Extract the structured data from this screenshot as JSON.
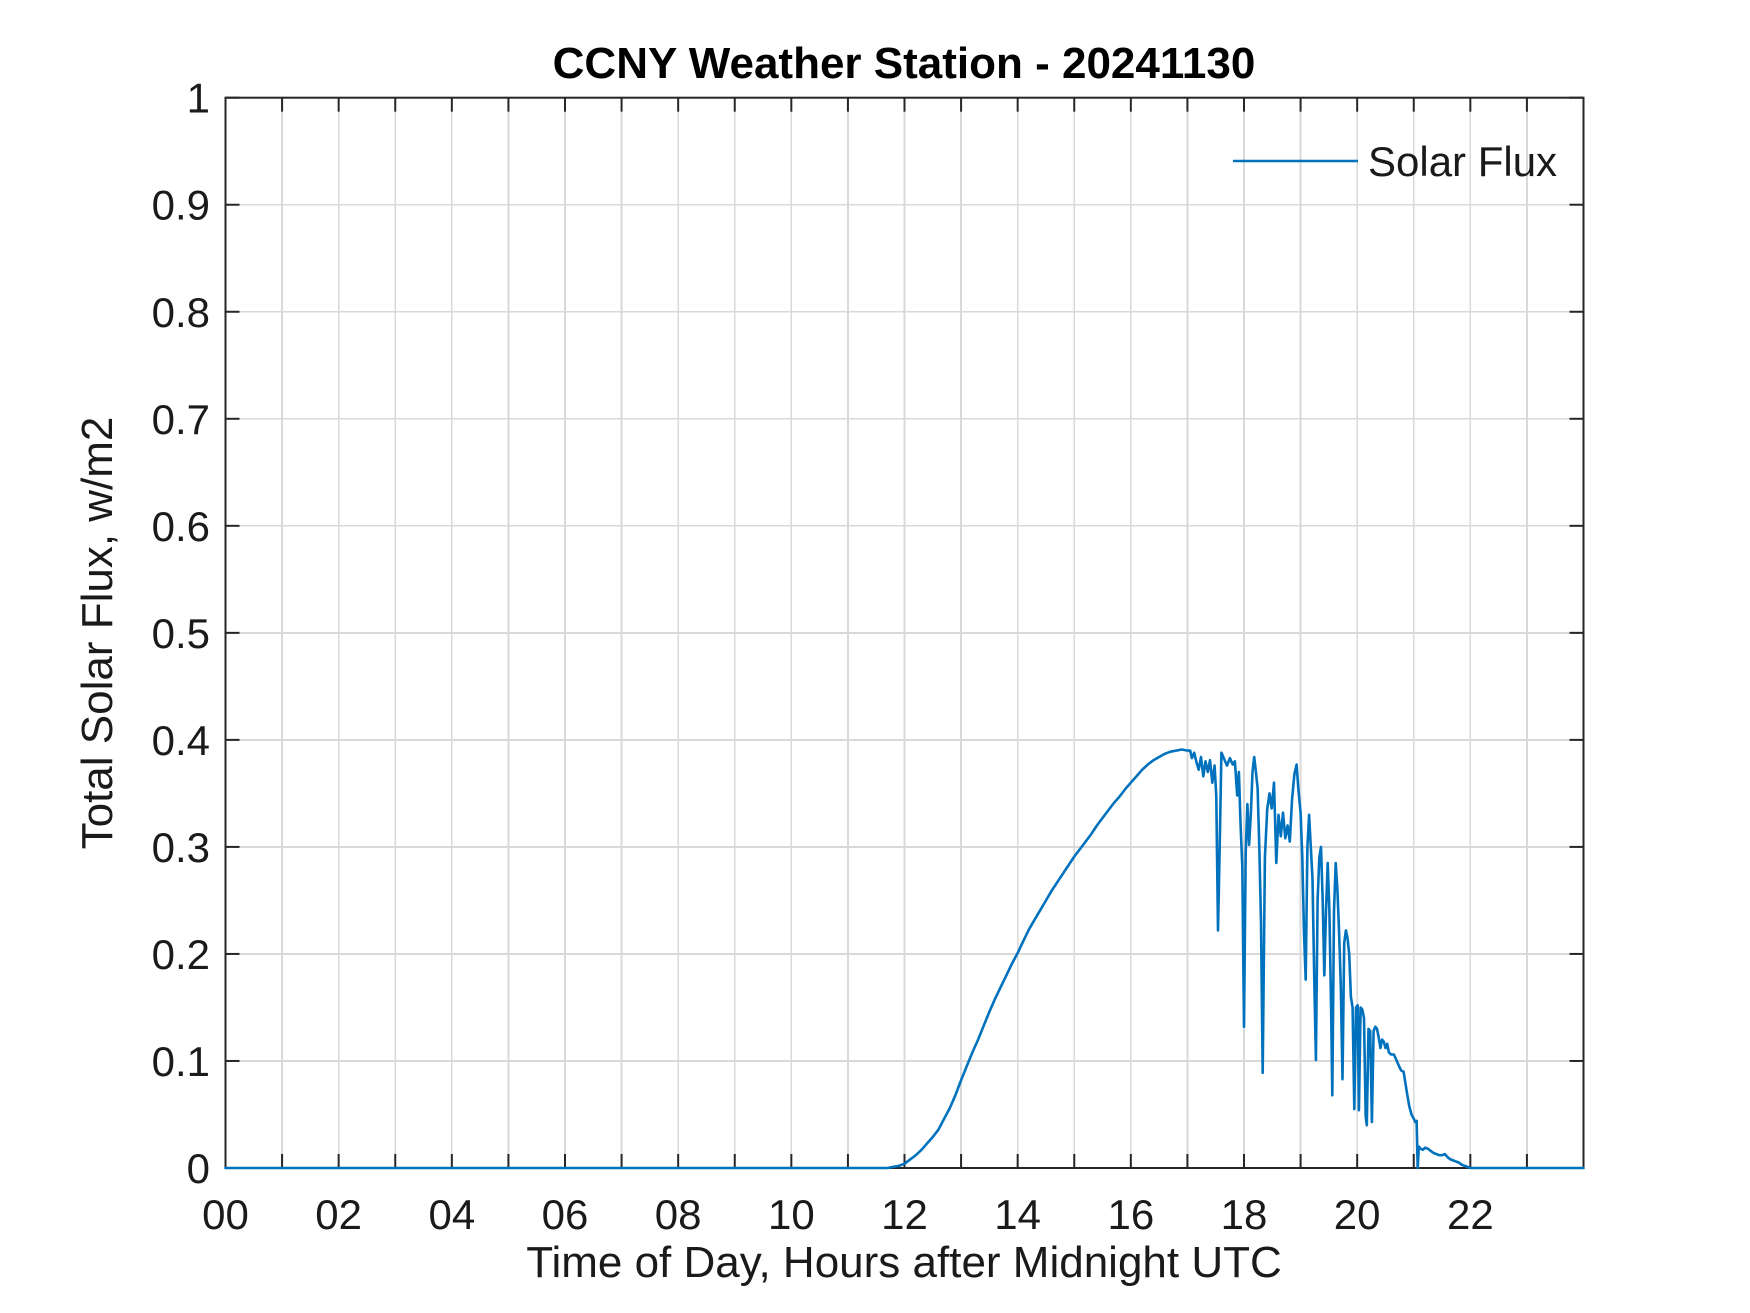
{
  "figure": {
    "background": "#FFFFFF"
  },
  "chart_data": {
    "type": "line",
    "title": "CCNY Weather Station - 20241130",
    "xlabel": "Time of Day, Hours after Midnight UTC",
    "ylabel": "Total Solar Flux, w/m2",
    "xlim": [
      0,
      24
    ],
    "ylim": [
      0,
      1
    ],
    "grid": true,
    "x_ticks": [
      0,
      1,
      2,
      3,
      4,
      5,
      6,
      7,
      8,
      9,
      10,
      11,
      12,
      13,
      14,
      15,
      16,
      17,
      18,
      19,
      20,
      21,
      22,
      23,
      24
    ],
    "x_tick_labels": [
      {
        "value": 0,
        "label": "00"
      },
      {
        "value": 2,
        "label": "02"
      },
      {
        "value": 4,
        "label": "04"
      },
      {
        "value": 6,
        "label": "06"
      },
      {
        "value": 8,
        "label": "08"
      },
      {
        "value": 10,
        "label": "10"
      },
      {
        "value": 12,
        "label": "12"
      },
      {
        "value": 14,
        "label": "14"
      },
      {
        "value": 16,
        "label": "16"
      },
      {
        "value": 18,
        "label": "18"
      },
      {
        "value": 20,
        "label": "20"
      },
      {
        "value": 22,
        "label": "22"
      }
    ],
    "y_ticks": [
      0,
      0.1,
      0.2,
      0.3,
      0.4,
      0.5,
      0.6,
      0.7,
      0.8,
      0.9,
      1
    ],
    "y_tick_labels": [
      "0",
      "0.1",
      "0.2",
      "0.3",
      "0.4",
      "0.5",
      "0.6",
      "0.7",
      "0.8",
      "0.9",
      "1"
    ],
    "colors": {
      "line": "#0072BD",
      "grid": "#D9D9D9",
      "axis": "#262626",
      "tick_text": "#1A1A1A",
      "title_text": "#000000"
    },
    "legend": [
      {
        "label": "Solar Flux",
        "color": "#0072BD",
        "position": "northeast",
        "box": false
      }
    ],
    "series": [
      {
        "name": "Solar Flux",
        "points": [
          [
            0,
            0
          ],
          [
            1,
            0
          ],
          [
            2,
            0
          ],
          [
            3,
            0
          ],
          [
            4,
            0
          ],
          [
            5,
            0
          ],
          [
            6,
            0
          ],
          [
            7,
            0
          ],
          [
            8,
            0
          ],
          [
            9,
            0
          ],
          [
            10,
            0
          ],
          [
            10.5,
            0
          ],
          [
            11,
            0
          ],
          [
            11.4,
            0
          ],
          [
            11.7,
            0
          ],
          [
            11.8,
            0.001
          ],
          [
            11.9,
            0.002
          ],
          [
            12,
            0.004
          ],
          [
            12.1,
            0.008
          ],
          [
            12.2,
            0.012
          ],
          [
            12.3,
            0.017
          ],
          [
            12.4,
            0.023
          ],
          [
            12.5,
            0.029
          ],
          [
            12.6,
            0.036
          ],
          [
            12.7,
            0.046
          ],
          [
            12.8,
            0.056
          ],
          [
            12.9,
            0.068
          ],
          [
            13,
            0.082
          ],
          [
            13.1,
            0.095
          ],
          [
            13.2,
            0.108
          ],
          [
            13.3,
            0.12
          ],
          [
            13.4,
            0.133
          ],
          [
            13.5,
            0.146
          ],
          [
            13.6,
            0.158
          ],
          [
            13.7,
            0.169
          ],
          [
            13.8,
            0.18
          ],
          [
            13.9,
            0.191
          ],
          [
            14,
            0.201
          ],
          [
            14.1,
            0.212
          ],
          [
            14.2,
            0.223
          ],
          [
            14.3,
            0.232
          ],
          [
            14.4,
            0.241
          ],
          [
            14.5,
            0.25
          ],
          [
            14.6,
            0.259
          ],
          [
            14.7,
            0.267
          ],
          [
            14.8,
            0.275
          ],
          [
            14.9,
            0.283
          ],
          [
            15,
            0.291
          ],
          [
            15.1,
            0.298
          ],
          [
            15.2,
            0.305
          ],
          [
            15.3,
            0.312
          ],
          [
            15.4,
            0.32
          ],
          [
            15.5,
            0.327
          ],
          [
            15.6,
            0.334
          ],
          [
            15.7,
            0.341
          ],
          [
            15.8,
            0.347
          ],
          [
            15.9,
            0.354
          ],
          [
            16,
            0.36
          ],
          [
            16.1,
            0.366
          ],
          [
            16.2,
            0.372
          ],
          [
            16.3,
            0.377
          ],
          [
            16.4,
            0.381
          ],
          [
            16.5,
            0.384
          ],
          [
            16.6,
            0.387
          ],
          [
            16.7,
            0.389
          ],
          [
            16.8,
            0.39
          ],
          [
            16.9,
            0.391
          ],
          [
            17,
            0.39
          ],
          [
            17.05,
            0.39
          ],
          [
            17.08,
            0.383
          ],
          [
            17.12,
            0.388
          ],
          [
            17.16,
            0.379
          ],
          [
            17.2,
            0.372
          ],
          [
            17.24,
            0.384
          ],
          [
            17.28,
            0.366
          ],
          [
            17.32,
            0.38
          ],
          [
            17.36,
            0.37
          ],
          [
            17.4,
            0.381
          ],
          [
            17.44,
            0.36
          ],
          [
            17.48,
            0.376
          ],
          [
            17.51,
            0.347
          ],
          [
            17.54,
            0.222
          ],
          [
            17.57,
            0.3
          ],
          [
            17.6,
            0.388
          ],
          [
            17.65,
            0.382
          ],
          [
            17.7,
            0.376
          ],
          [
            17.75,
            0.383
          ],
          [
            17.8,
            0.377
          ],
          [
            17.84,
            0.38
          ],
          [
            17.88,
            0.348
          ],
          [
            17.91,
            0.37
          ],
          [
            17.94,
            0.32
          ],
          [
            17.97,
            0.282
          ],
          [
            18,
            0.132
          ],
          [
            18.03,
            0.295
          ],
          [
            18.06,
            0.34
          ],
          [
            18.09,
            0.302
          ],
          [
            18.12,
            0.33
          ],
          [
            18.15,
            0.37
          ],
          [
            18.18,
            0.384
          ],
          [
            18.21,
            0.37
          ],
          [
            18.24,
            0.355
          ],
          [
            18.27,
            0.3
          ],
          [
            18.3,
            0.23
          ],
          [
            18.33,
            0.089
          ],
          [
            18.37,
            0.29
          ],
          [
            18.41,
            0.335
          ],
          [
            18.45,
            0.35
          ],
          [
            18.49,
            0.336
          ],
          [
            18.53,
            0.36
          ],
          [
            18.57,
            0.285
          ],
          [
            18.61,
            0.33
          ],
          [
            18.65,
            0.31
          ],
          [
            18.69,
            0.332
          ],
          [
            18.73,
            0.308
          ],
          [
            18.77,
            0.32
          ],
          [
            18.81,
            0.305
          ],
          [
            18.85,
            0.345
          ],
          [
            18.89,
            0.368
          ],
          [
            18.93,
            0.377
          ],
          [
            18.96,
            0.355
          ],
          [
            19,
            0.332
          ],
          [
            19.03,
            0.29
          ],
          [
            19.06,
            0.22
          ],
          [
            19.09,
            0.176
          ],
          [
            19.12,
            0.3
          ],
          [
            19.15,
            0.33
          ],
          [
            19.18,
            0.3
          ],
          [
            19.21,
            0.27
          ],
          [
            19.24,
            0.18
          ],
          [
            19.27,
            0.101
          ],
          [
            19.3,
            0.25
          ],
          [
            19.33,
            0.29
          ],
          [
            19.36,
            0.3
          ],
          [
            19.39,
            0.25
          ],
          [
            19.42,
            0.18
          ],
          [
            19.45,
            0.24
          ],
          [
            19.48,
            0.285
          ],
          [
            19.51,
            0.24
          ],
          [
            19.54,
            0.15
          ],
          [
            19.56,
            0.068
          ],
          [
            19.59,
            0.24
          ],
          [
            19.62,
            0.285
          ],
          [
            19.65,
            0.26
          ],
          [
            19.68,
            0.22
          ],
          [
            19.71,
            0.17
          ],
          [
            19.74,
            0.083
          ],
          [
            19.77,
            0.21
          ],
          [
            19.8,
            0.222
          ],
          [
            19.83,
            0.215
          ],
          [
            19.86,
            0.2
          ],
          [
            19.89,
            0.16
          ],
          [
            19.92,
            0.15
          ],
          [
            19.95,
            0.055
          ],
          [
            19.98,
            0.15
          ],
          [
            20.01,
            0.152
          ],
          [
            20.03,
            0.054
          ],
          [
            20.06,
            0.15
          ],
          [
            20.09,
            0.148
          ],
          [
            20.12,
            0.14
          ],
          [
            20.15,
            0.048
          ],
          [
            20.17,
            0.04
          ],
          [
            20.2,
            0.13
          ],
          [
            20.23,
            0.128
          ],
          [
            20.26,
            0.043
          ],
          [
            20.29,
            0.128
          ],
          [
            20.32,
            0.132
          ],
          [
            20.35,
            0.13
          ],
          [
            20.38,
            0.122
          ],
          [
            20.41,
            0.112
          ],
          [
            20.44,
            0.12
          ],
          [
            20.47,
            0.118
          ],
          [
            20.5,
            0.112
          ],
          [
            20.53,
            0.116
          ],
          [
            20.56,
            0.108
          ],
          [
            20.6,
            0.106
          ],
          [
            20.65,
            0.106
          ],
          [
            20.7,
            0.1
          ],
          [
            20.75,
            0.094
          ],
          [
            20.78,
            0.091
          ],
          [
            20.82,
            0.09
          ],
          [
            20.85,
            0.08
          ],
          [
            20.88,
            0.07
          ],
          [
            20.92,
            0.058
          ],
          [
            20.96,
            0.05
          ],
          [
            21,
            0.046
          ],
          [
            21.03,
            0.043
          ],
          [
            21.05,
            0.044
          ],
          [
            21.07,
            0
          ],
          [
            21.09,
            0.02
          ],
          [
            21.12,
            0.018
          ],
          [
            21.16,
            0.017
          ],
          [
            21.2,
            0.019
          ],
          [
            21.25,
            0.018
          ],
          [
            21.3,
            0.016
          ],
          [
            21.35,
            0.014
          ],
          [
            21.4,
            0.013
          ],
          [
            21.45,
            0.012
          ],
          [
            21.5,
            0.012
          ],
          [
            21.55,
            0.013
          ],
          [
            21.6,
            0.01
          ],
          [
            21.65,
            0.008
          ],
          [
            21.7,
            0.007
          ],
          [
            21.75,
            0.006
          ],
          [
            21.8,
            0.005
          ],
          [
            21.85,
            0.003
          ],
          [
            21.9,
            0.002
          ],
          [
            21.95,
            0.001
          ],
          [
            22,
            0
          ],
          [
            22.5,
            0
          ],
          [
            23,
            0
          ],
          [
            23.5,
            0
          ],
          [
            24,
            0
          ]
        ]
      }
    ]
  }
}
